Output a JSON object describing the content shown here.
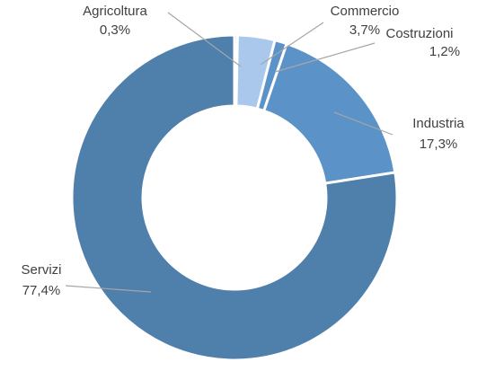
{
  "chart_data": {
    "type": "pie",
    "variant": "donut",
    "title": "",
    "legend": "none",
    "start": "top",
    "direction": "clockwise",
    "slices": [
      {
        "name": "Agricoltura",
        "value": 0.3,
        "label": "0,3%",
        "color": "#a9c8ec"
      },
      {
        "name": "Commercio",
        "value": 3.7,
        "label": "3,7%",
        "color": "#a9c8ec"
      },
      {
        "name": "Costruzioni",
        "value": 1.2,
        "label": "1,2%",
        "color": "#5b93c9"
      },
      {
        "name": "Industria",
        "value": 17.3,
        "label": "17,3%",
        "color": "#5b93c9"
      },
      {
        "name": "Servizi",
        "value": 77.4,
        "label": "77,4%",
        "color": "#4f7fab"
      }
    ]
  }
}
